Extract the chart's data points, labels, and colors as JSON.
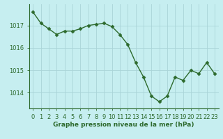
{
  "x": [
    0,
    1,
    2,
    3,
    4,
    5,
    6,
    7,
    8,
    9,
    10,
    11,
    12,
    13,
    14,
    15,
    16,
    17,
    18,
    19,
    20,
    21,
    22,
    23
  ],
  "y": [
    1017.6,
    1017.1,
    1016.85,
    1016.6,
    1016.75,
    1016.75,
    1016.85,
    1017.0,
    1017.05,
    1017.1,
    1016.95,
    1016.6,
    1016.15,
    1015.35,
    1014.7,
    1013.85,
    1013.6,
    1013.85,
    1014.7,
    1014.55,
    1015.0,
    1014.85,
    1015.35,
    1014.85
  ],
  "line_color": "#2d6a2d",
  "marker": "D",
  "marker_size": 2.5,
  "bg_color": "#c6eef0",
  "grid_color": "#aad4d8",
  "ylabel_ticks": [
    1014,
    1015,
    1016,
    1017
  ],
  "ylim": [
    1013.3,
    1017.95
  ],
  "xlim": [
    -0.5,
    23.5
  ],
  "xlabel": "Graphe pression niveau de la mer (hPa)",
  "xlabel_color": "#2d6a2d",
  "xlabel_fontsize": 6.5,
  "tick_label_color": "#2d6a2d",
  "tick_label_fontsize": 6.0,
  "axis_color": "#2d6a2d",
  "linewidth": 1.0
}
